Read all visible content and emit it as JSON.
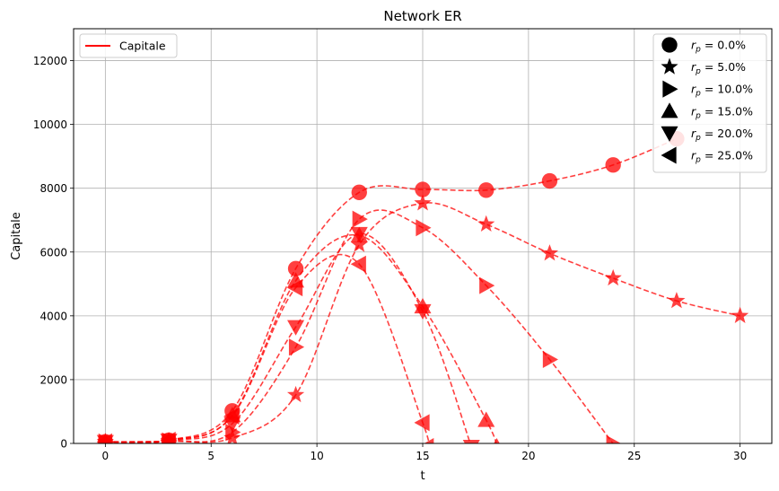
{
  "chart_data": {
    "type": "line",
    "title": "Network ER",
    "xlabel": "t",
    "ylabel": "Capitale",
    "xlim": [
      -1.5,
      31.5
    ],
    "ylim": [
      0,
      13000
    ],
    "x_ticks": [
      0,
      5,
      10,
      15,
      20,
      25,
      30
    ],
    "y_ticks": [
      0,
      2000,
      4000,
      6000,
      8000,
      10000,
      12000
    ],
    "grid": true,
    "color": "#ff0000",
    "line_style": "dashed",
    "line_legend": {
      "label": "Capitale",
      "placement": "upper-left"
    },
    "marker_legend_placement": "upper-right",
    "series": [
      {
        "name": "r_p = 0.0%",
        "legend_prefix": "r",
        "legend_sub": "p",
        "legend_value": " = 0.0%",
        "marker": "circle",
        "x": [
          0,
          3,
          6,
          9,
          12,
          15,
          18,
          21,
          24,
          27
        ],
        "y": [
          50,
          100,
          1020,
          5480,
          7870,
          7960,
          7940,
          8230,
          8730,
          9550
        ]
      },
      {
        "name": "r_p = 5.0%",
        "legend_prefix": "r",
        "legend_sub": "p",
        "legend_value": " = 5.0%",
        "marker": "star",
        "x": [
          0,
          3,
          6,
          9,
          12,
          15,
          18,
          21,
          24,
          27,
          30
        ],
        "y": [
          50,
          70,
          170,
          1520,
          6230,
          7530,
          6870,
          5960,
          5180,
          4470,
          4000
        ]
      },
      {
        "name": "r_p = 10.0%",
        "legend_prefix": "r",
        "legend_sub": "p",
        "legend_value": " = 10.0%",
        "marker": "triangle-right",
        "x": [
          0,
          3,
          6,
          9,
          12,
          15,
          18,
          21,
          24
        ],
        "y": [
          50,
          80,
          350,
          3020,
          7030,
          6760,
          4950,
          2630,
          -10
        ]
      },
      {
        "name": "r_p = 15.0%",
        "legend_prefix": "r",
        "legend_sub": "p",
        "legend_value": " = 15.0%",
        "marker": "triangle-up",
        "x": [
          0,
          3,
          6,
          9,
          12,
          15,
          18,
          18.5
        ],
        "y": [
          50,
          90,
          880,
          5100,
          6520,
          4290,
          730,
          -100
        ]
      },
      {
        "name": "r_p = 20.0%",
        "legend_prefix": "r",
        "legend_sub": "p",
        "legend_value": " = 20.0%",
        "marker": "triangle-down",
        "x": [
          0,
          3,
          6,
          9,
          12,
          15,
          17.3
        ],
        "y": [
          50,
          90,
          620,
          3650,
          6570,
          4150,
          -100
        ]
      },
      {
        "name": "r_p = 25.0%",
        "legend_prefix": "r",
        "legend_sub": "p",
        "legend_value": " = 25.0%",
        "marker": "triangle-left",
        "x": [
          0,
          3,
          6,
          9,
          12,
          15,
          15.2
        ],
        "y": [
          50,
          100,
          860,
          4880,
          5620,
          650,
          -100
        ]
      }
    ]
  }
}
